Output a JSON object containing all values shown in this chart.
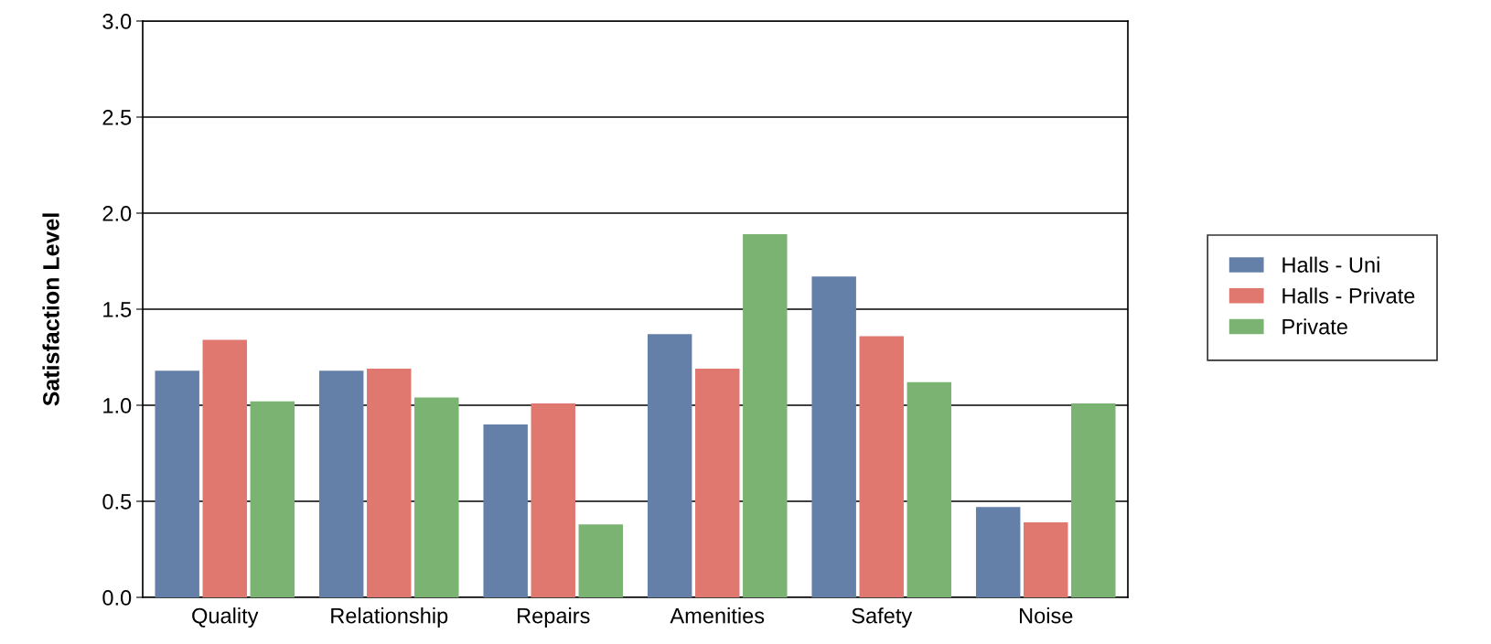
{
  "chart_data": {
    "type": "bar",
    "ylabel": "Satisfaction Level",
    "categories": [
      "Quality",
      "Relationship",
      "Repairs",
      "Amenities",
      "Safety",
      "Noise"
    ],
    "series": [
      {
        "name": "Halls - Uni",
        "color": "#6580a8",
        "values": [
          1.18,
          1.18,
          0.9,
          1.37,
          1.67,
          0.47
        ]
      },
      {
        "name": "Halls - Private",
        "color": "#e07870",
        "values": [
          1.34,
          1.19,
          1.01,
          1.19,
          1.36,
          0.39
        ]
      },
      {
        "name": "Private",
        "color": "#7ab372",
        "values": [
          1.02,
          1.04,
          0.38,
          1.89,
          1.12,
          1.01
        ]
      }
    ],
    "ylim": [
      0,
      3
    ],
    "yticks": [
      {
        "value": 0,
        "label": "0.0"
      },
      {
        "value": 0.5,
        "label": "0.5"
      },
      {
        "value": 1,
        "label": "1.0"
      },
      {
        "value": 1.5,
        "label": "1.5"
      },
      {
        "value": 2,
        "label": "2.0"
      },
      {
        "value": 2.5,
        "label": "2.5"
      },
      {
        "value": 3,
        "label": "3.0"
      }
    ],
    "grid": "y",
    "legend": "right"
  }
}
